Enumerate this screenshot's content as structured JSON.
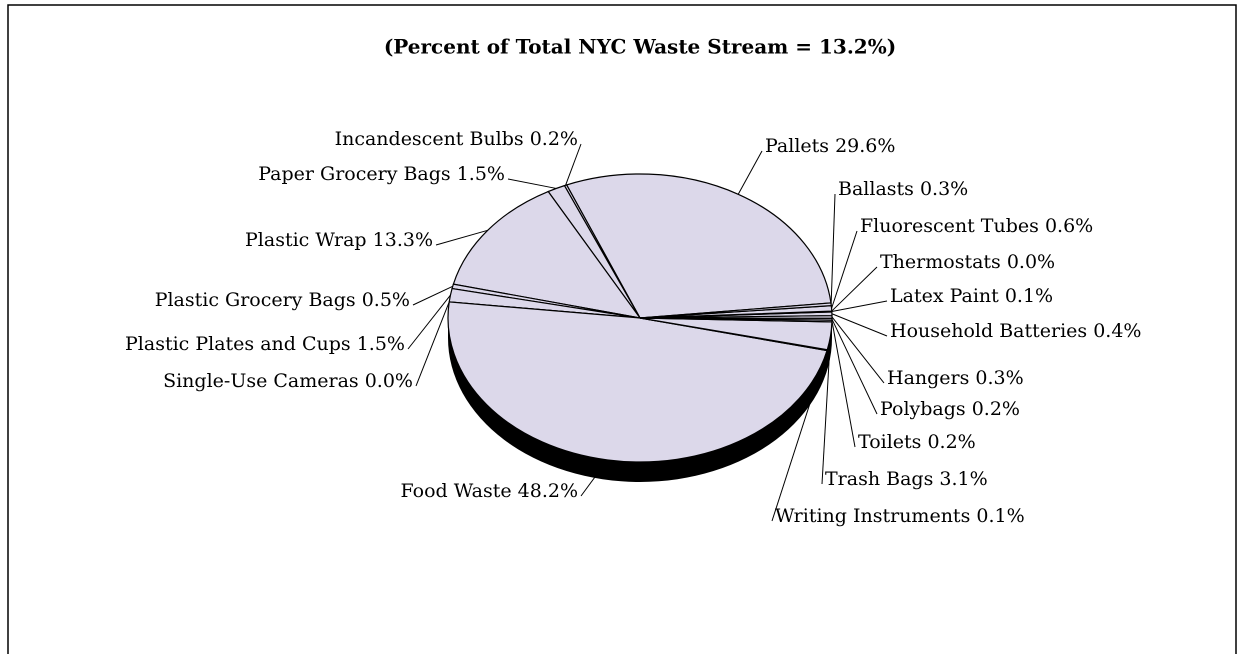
{
  "chart_data": {
    "type": "pie",
    "title": "(Percent of Total NYC Waste Stream = 13.2%)",
    "categories": [
      "Pallets",
      "Incandescent Bulbs",
      "Paper Grocery Bags",
      "Plastic Wrap",
      "Plastic Grocery Bags",
      "Plastic Plates and Cups",
      "Single-Use Cameras",
      "Food Waste",
      "Writing Instruments",
      "Trash Bags",
      "Toilets",
      "Polybags",
      "Hangers",
      "Household Batteries",
      "Latex Paint",
      "Thermostats",
      "Fluorescent Tubes",
      "Ballasts"
    ],
    "values": [
      29.6,
      0.2,
      1.5,
      13.3,
      0.5,
      1.5,
      0.0,
      48.2,
      0.1,
      3.1,
      0.2,
      0.2,
      0.3,
      0.4,
      0.1,
      0.0,
      0.6,
      0.3
    ],
    "value_labels": [
      "29.6%",
      "0.2%",
      "1.5%",
      "13.3%",
      "0.5%",
      "1.5%",
      "0.0%",
      "48.2%",
      "0.1%",
      "3.1%",
      "0.2%",
      "0.2%",
      "0.3%",
      "0.4%",
      "0.1%",
      "0.0%",
      "0.6%",
      "0.3%"
    ],
    "color": "#dcd8ea"
  }
}
